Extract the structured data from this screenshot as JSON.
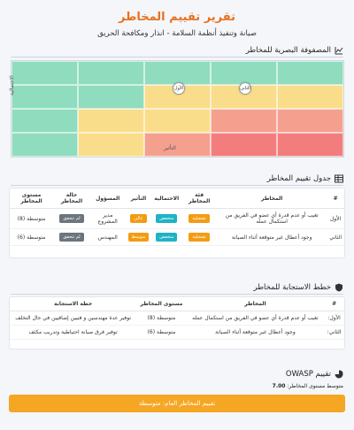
{
  "header": {
    "title": "تقرير تقييم المخاطر",
    "subtitle": "صيانة وتنفيذ أنظمة السلامة - انذار ومكافحة الحريق"
  },
  "matrix": {
    "heading": "المصفوفة البصرية للمخاطر",
    "y_label": "الاحتمالية",
    "x_label": "التأثير",
    "markers": [
      {
        "label": "الأول"
      },
      {
        "label": "الثاني"
      }
    ],
    "colors": {
      "green": "#8fdcbf",
      "yellow": "#f9dd8a",
      "salmon": "#f5a08f",
      "red": "#f37d7d"
    }
  },
  "assessment": {
    "heading": "جدول تقييم المخاطر",
    "columns": [
      "#",
      "المخاطر",
      "فئة المخاطر",
      "الاحتمالية",
      "التأثير",
      "المسؤول",
      "حالة المخاطر",
      "مستوى المخاطر"
    ],
    "rows": [
      {
        "num": "الأول",
        "risk": "تغيب أو عدم قدرة أي عضو في الفريق من استكمال عمله",
        "category": "تشغيلية",
        "probability": "منخفض",
        "impact": "عالي",
        "owner": "مدير المشروع",
        "status": "لم تتحقق",
        "level": "متوسطة (8)"
      },
      {
        "num": "الثاني",
        "risk": "وجود أعطال غير متوقعة أثناء الصيانة",
        "category": "تشغيلية",
        "probability": "منخفض",
        "impact": "متوسط",
        "owner": "المهندس",
        "status": "لم تتحقق",
        "level": "متوسطة (6)"
      }
    ]
  },
  "response": {
    "heading": "خطط الاستجابة للمخاطر",
    "columns": [
      "#",
      "المخاطر",
      "مستوى المخاطر",
      "خطة الاستجابة"
    ],
    "rows": [
      {
        "num": "الأول:",
        "risk": "تغيب أو عدم قدرة أي عضو في الفريق من استكمال عمله",
        "level": "متوسطة (8)",
        "plan": "توفير عدة مهندسين و فنيين إضافيين في حال التخلف"
      },
      {
        "num": "الثاني:",
        "risk": "وجود أعطال غير متوقعة أثناء الصيانة",
        "level": "متوسطة (6)",
        "plan": "توفير فرق صيانة احتياطية وتدريب مكثف"
      }
    ]
  },
  "owasp": {
    "heading": "تقييم OWASP",
    "average_label": "متوسط مستوى المخاطر:",
    "average_value": "7.00",
    "overall": "تقييم المخاطر العام: متوسطة"
  }
}
